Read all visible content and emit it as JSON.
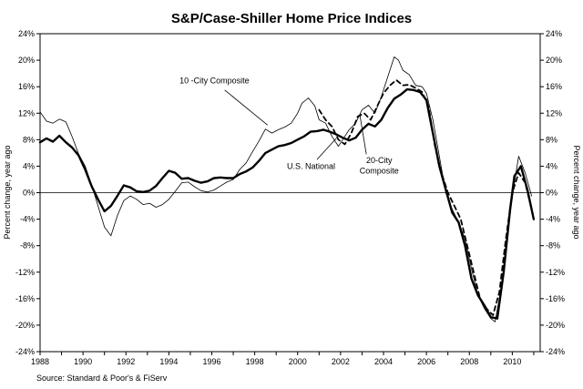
{
  "chart_data": {
    "type": "line",
    "title": "S&P/Case-Shiller Home Price Indices",
    "ylabel_left": "Percent change, year ago",
    "ylabel_right": "Percent change, year ago",
    "source": "Source: Standard & Poor's & FiServ",
    "xlim": [
      1988,
      2011.3
    ],
    "ylim": [
      -24,
      24
    ],
    "x_ticks": [
      1988,
      1990,
      1992,
      1994,
      1996,
      1998,
      2000,
      2002,
      2004,
      2006,
      2008,
      2010
    ],
    "x_tick_labels": [
      "1988",
      "1990",
      "1992",
      "1994",
      "1996",
      "1998",
      "2000",
      "2002",
      "2004",
      "2006",
      "2008",
      "2010"
    ],
    "y_ticks": [
      -24,
      -20,
      -16,
      -12,
      -8,
      -4,
      0,
      4,
      8,
      12,
      16,
      20,
      24
    ],
    "y_tick_labels": [
      "-24%",
      "-20%",
      "-16%",
      "-12%",
      "-8%",
      "-4%",
      "0%",
      "4%",
      "8%",
      "12%",
      "16%",
      "20%",
      "24%"
    ],
    "zero_line": true,
    "grid": false,
    "annotations": [
      {
        "label": "10 -City Composite",
        "series": 0
      },
      {
        "label": "U.S. National",
        "series": 1
      },
      {
        "label": "20-City",
        "label2": "Composite",
        "series": 2
      }
    ],
    "series": [
      {
        "style": "thin",
        "color": "#000000",
        "x": [
          1988.0,
          1988.3,
          1988.6,
          1988.9,
          1989.2,
          1989.5,
          1989.8,
          1990.1,
          1990.4,
          1990.7,
          1991.0,
          1991.3,
          1991.6,
          1991.9,
          1992.2,
          1992.5,
          1992.8,
          1993.1,
          1993.4,
          1993.7,
          1994.0,
          1994.3,
          1994.6,
          1994.9,
          1995.2,
          1995.5,
          1995.8,
          1996.1,
          1996.4,
          1996.7,
          1997.0,
          1997.3,
          1997.6,
          1997.9,
          1998.2,
          1998.5,
          1998.8,
          1999.1,
          1999.4,
          1999.7,
          2000.0,
          2000.2,
          2000.5,
          2000.8,
          2001.0,
          2001.3,
          2001.6,
          2001.9,
          2002.1,
          2002.4,
          2002.7,
          2003.0,
          2003.3,
          2003.6,
          2003.9,
          2004.2,
          2004.5,
          2004.7,
          2004.9,
          2005.2,
          2005.5,
          2005.8,
          2006.0,
          2006.3,
          2006.6,
          2006.9,
          2007.2,
          2007.5,
          2007.8,
          2008.1,
          2008.4,
          2008.7,
          2009.0,
          2009.2,
          2009.5,
          2009.8,
          2010.1,
          2010.3,
          2010.6,
          2010.9
        ],
        "values": [
          12.2,
          10.8,
          10.5,
          11.1,
          10.7,
          8.4,
          5.8,
          4.0,
          1.2,
          -2.0,
          -5.2,
          -6.5,
          -3.5,
          -1.2,
          -0.5,
          -1.0,
          -1.8,
          -1.6,
          -2.2,
          -1.8,
          -1.0,
          0.2,
          1.5,
          1.6,
          0.9,
          0.3,
          0.1,
          0.4,
          1.0,
          1.6,
          2.0,
          3.5,
          4.5,
          6.2,
          7.8,
          9.6,
          9.0,
          9.5,
          9.9,
          10.5,
          12.0,
          13.5,
          14.3,
          13.1,
          11.0,
          10.5,
          8.5,
          7.0,
          8.0,
          9.5,
          10.5,
          12.5,
          13.2,
          12.0,
          14.5,
          17.5,
          20.5,
          20.0,
          18.5,
          17.8,
          16.2,
          16.0,
          15.0,
          11.0,
          5.5,
          0.0,
          -2.5,
          -4.5,
          -7.0,
          -11.5,
          -15.5,
          -17.5,
          -19.0,
          -19.5,
          -14.0,
          -5.5,
          1.5,
          5.5,
          3.0,
          -0.5
        ]
      },
      {
        "style": "bold",
        "color": "#000000",
        "x": [
          1988.0,
          1988.3,
          1988.6,
          1988.9,
          1989.2,
          1989.5,
          1989.8,
          1990.1,
          1990.4,
          1990.7,
          1991.0,
          1991.3,
          1991.6,
          1991.9,
          1992.2,
          1992.5,
          1992.8,
          1993.1,
          1993.4,
          1993.7,
          1994.0,
          1994.3,
          1994.6,
          1994.9,
          1995.2,
          1995.5,
          1995.8,
          1996.1,
          1996.4,
          1996.7,
          1997.0,
          1997.3,
          1997.6,
          1997.9,
          1998.2,
          1998.5,
          1998.8,
          1999.1,
          1999.4,
          1999.7,
          2000.0,
          2000.3,
          2000.6,
          2000.9,
          2001.2,
          2001.5,
          2001.8,
          2002.1,
          2002.4,
          2002.7,
          2003.0,
          2003.3,
          2003.6,
          2003.9,
          2004.2,
          2004.5,
          2004.8,
          2005.1,
          2005.4,
          2005.7,
          2006.0,
          2006.3,
          2006.6,
          2006.9,
          2007.2,
          2007.5,
          2007.8,
          2008.1,
          2008.4,
          2008.7,
          2009.0,
          2009.3,
          2009.6,
          2009.9,
          2010.1,
          2010.4,
          2010.7,
          2011.0
        ],
        "values": [
          7.6,
          8.2,
          7.7,
          8.6,
          7.6,
          6.8,
          5.6,
          3.5,
          1.0,
          -1.0,
          -2.8,
          -2.0,
          -0.5,
          1.1,
          0.8,
          0.2,
          0.1,
          0.3,
          1.0,
          2.2,
          3.3,
          3.0,
          2.1,
          2.2,
          1.8,
          1.5,
          1.7,
          2.2,
          2.3,
          2.2,
          2.2,
          2.8,
          3.2,
          3.8,
          4.8,
          6.0,
          6.5,
          7.0,
          7.2,
          7.5,
          8.0,
          8.5,
          9.2,
          9.3,
          9.5,
          9.2,
          8.8,
          8.3,
          7.9,
          8.3,
          9.5,
          10.4,
          10.0,
          11.0,
          12.8,
          14.2,
          14.8,
          15.6,
          15.5,
          15.2,
          14.0,
          9.0,
          4.0,
          0.5,
          -3.0,
          -4.5,
          -8.0,
          -13.0,
          -15.5,
          -17.0,
          -18.8,
          -19.0,
          -12.0,
          -2.5,
          2.5,
          4.0,
          0.5,
          -4.0
        ]
      },
      {
        "style": "dashed",
        "color": "#000000",
        "x": [
          2001.0,
          2001.3,
          2001.6,
          2001.9,
          2002.2,
          2002.5,
          2002.8,
          2003.1,
          2003.4,
          2003.7,
          2004.0,
          2004.3,
          2004.6,
          2004.9,
          2005.2,
          2005.5,
          2005.8,
          2006.1,
          2006.4,
          2006.7,
          2007.0,
          2007.3,
          2007.6,
          2007.9,
          2008.2,
          2008.5,
          2008.8,
          2009.1,
          2009.4,
          2009.7,
          2010.0,
          2010.3,
          2010.6,
          2010.9
        ],
        "values": [
          12.5,
          11.0,
          10.0,
          8.0,
          7.3,
          9.0,
          11.5,
          12.0,
          11.0,
          13.0,
          15.0,
          16.2,
          17.0,
          16.2,
          16.3,
          15.8,
          15.2,
          13.0,
          7.0,
          3.0,
          0.0,
          -2.0,
          -4.0,
          -8.0,
          -12.0,
          -16.0,
          -17.5,
          -18.5,
          -15.0,
          -7.0,
          0.0,
          3.0,
          1.5,
          -2.5
        ]
      }
    ]
  }
}
